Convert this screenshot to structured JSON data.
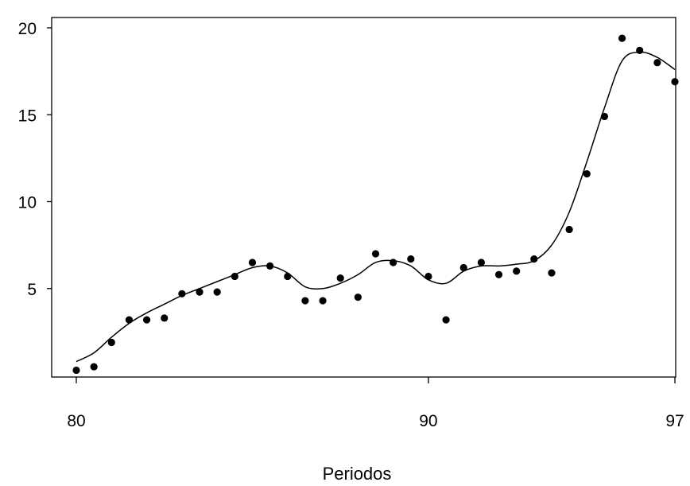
{
  "chart_data": {
    "type": "scatter",
    "title": "",
    "xlabel": "Periodos",
    "ylabel": "",
    "xlim": [
      80,
      97
    ],
    "ylim": [
      0,
      20
    ],
    "x_ticks": [
      80,
      90,
      97
    ],
    "x_tick_labels": [
      "80",
      "90",
      "97"
    ],
    "y_ticks": [
      5,
      10,
      15,
      20
    ],
    "y_tick_labels": [
      "5",
      "10",
      "15",
      "20"
    ],
    "grid": false,
    "legend": "none",
    "series": [
      {
        "type": "scatter",
        "x": [
          80.0,
          80.5,
          81.0,
          81.5,
          82.0,
          82.5,
          83.0,
          83.5,
          84.0,
          84.5,
          85.0,
          85.5,
          86.0,
          86.5,
          87.0,
          87.5,
          88.0,
          88.5,
          89.0,
          89.5,
          90.0,
          90.5,
          91.0,
          91.5,
          92.0,
          92.5,
          93.0,
          93.5,
          94.0,
          94.5,
          95.0,
          95.5,
          96.0,
          96.5,
          97.0
        ],
        "y": [
          0.3,
          0.5,
          1.9,
          3.2,
          3.2,
          3.3,
          4.7,
          4.8,
          4.8,
          5.7,
          6.5,
          6.3,
          5.7,
          4.3,
          4.3,
          5.6,
          4.5,
          7.0,
          6.5,
          6.7,
          5.7,
          3.2,
          6.2,
          6.5,
          5.8,
          6.0,
          6.7,
          5.9,
          8.4,
          11.6,
          14.9,
          19.4,
          18.7,
          18.0,
          16.9
        ]
      },
      {
        "type": "line",
        "x": [
          80.0,
          80.5,
          81.0,
          81.5,
          82.0,
          82.5,
          83.0,
          83.5,
          84.0,
          84.5,
          85.0,
          85.5,
          86.0,
          86.5,
          87.0,
          87.5,
          88.0,
          88.5,
          89.0,
          89.5,
          90.0,
          90.5,
          91.0,
          91.5,
          92.0,
          92.5,
          93.0,
          93.5,
          94.0,
          94.5,
          95.0,
          95.5,
          96.0,
          96.5,
          97.0
        ],
        "y": [
          0.8,
          1.3,
          2.2,
          3.0,
          3.6,
          4.1,
          4.6,
          5.0,
          5.4,
          5.8,
          6.2,
          6.3,
          5.9,
          5.1,
          5.0,
          5.3,
          5.8,
          6.5,
          6.6,
          6.3,
          5.5,
          5.3,
          6.0,
          6.3,
          6.3,
          6.4,
          6.6,
          7.5,
          9.4,
          12.3,
          15.4,
          18.1,
          18.6,
          18.3,
          17.6
        ]
      }
    ]
  }
}
